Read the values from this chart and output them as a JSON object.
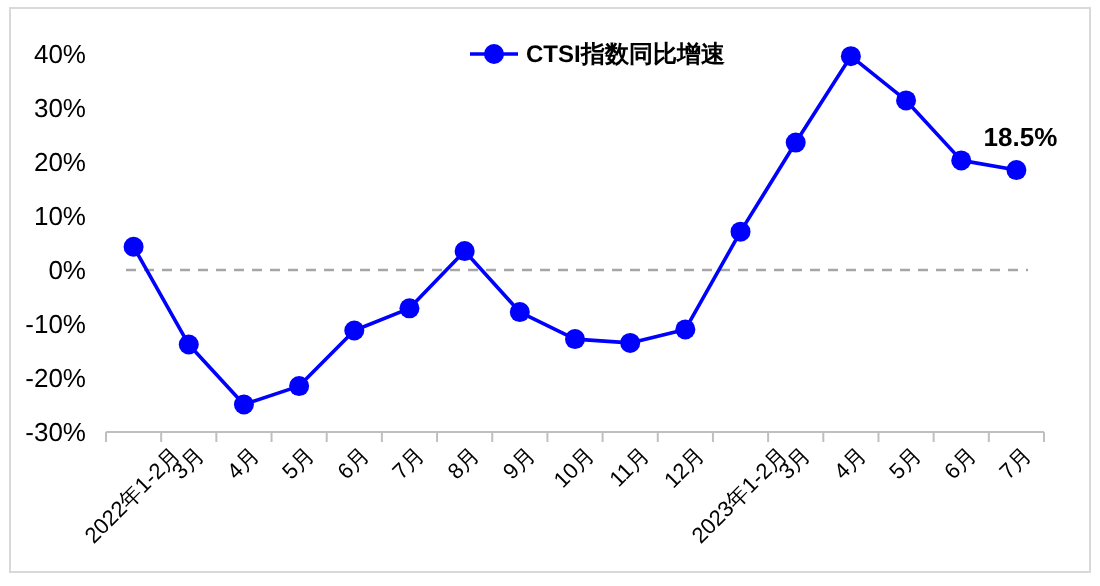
{
  "chart_data": {
    "type": "line",
    "categories": [
      "2022年1-2月",
      "3月",
      "4月",
      "5月",
      "6月",
      "7月",
      "8月",
      "9月",
      "10月",
      "11月",
      "12月",
      "2023年1-2月",
      "3月",
      "4月",
      "5月",
      "6月",
      "7月"
    ],
    "series": [
      {
        "name": "CTSI指数同比增速",
        "color": "#0000ff",
        "values": [
          4.3,
          -13.8,
          -24.9,
          -21.5,
          -11.2,
          -7.1,
          3.5,
          -7.8,
          -12.8,
          -13.5,
          -11.0,
          7.1,
          23.6,
          39.6,
          31.4,
          20.3,
          18.5
        ],
        "value_labels": [
          null,
          null,
          null,
          null,
          null,
          null,
          null,
          null,
          null,
          null,
          null,
          null,
          null,
          null,
          null,
          null,
          "18.5%"
        ]
      }
    ],
    "ylim": [
      -30,
      40
    ],
    "yticks": [
      {
        "value": -30,
        "label": "-30%"
      },
      {
        "value": -20,
        "label": "-20%"
      },
      {
        "value": -10,
        "label": "-10%"
      },
      {
        "value": 0,
        "label": "0%"
      },
      {
        "value": 10,
        "label": "10%"
      },
      {
        "value": 20,
        "label": "20%"
      },
      {
        "value": 30,
        "label": "30%"
      },
      {
        "value": 40,
        "label": "40%"
      }
    ],
    "ref_lines": [
      {
        "axis": "y",
        "value": 0,
        "color": "#a6a6a6",
        "line_style": "dashed"
      }
    ],
    "marker": "circle",
    "line_style": "solid",
    "grid": false,
    "legend": "top"
  }
}
